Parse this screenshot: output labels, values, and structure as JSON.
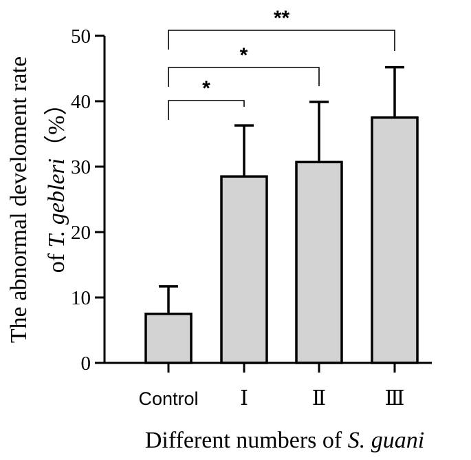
{
  "chart_data": {
    "type": "bar",
    "categories": [
      "Control",
      "Ⅰ",
      "Ⅱ",
      "Ⅲ"
    ],
    "values": [
      7.5,
      28.5,
      30.7,
      37.5
    ],
    "error": [
      4.2,
      7.8,
      9.2,
      7.7
    ],
    "ylim": [
      0,
      50
    ],
    "yticks": [
      0,
      10,
      20,
      30,
      40,
      50
    ],
    "ytick_labels": [
      "0",
      "10",
      "20",
      "30",
      "40",
      "50"
    ],
    "ylabel_line1": "The abnormal develoment rate",
    "ylabel_line2_prefix": "of ",
    "ylabel_line2_italic": "T. gebleri",
    "ylabel_line2_suffix": "（%）",
    "xlabel_prefix": "Different numbers of ",
    "xlabel_italic": "S. guani",
    "bar_color": "#d3d3d3",
    "significance": [
      {
        "from": "Control",
        "to": "Ⅰ",
        "label": "*"
      },
      {
        "from": "Control",
        "to": "Ⅱ",
        "label": "*"
      },
      {
        "from": "Control",
        "to": "Ⅲ",
        "label": "**"
      }
    ]
  }
}
